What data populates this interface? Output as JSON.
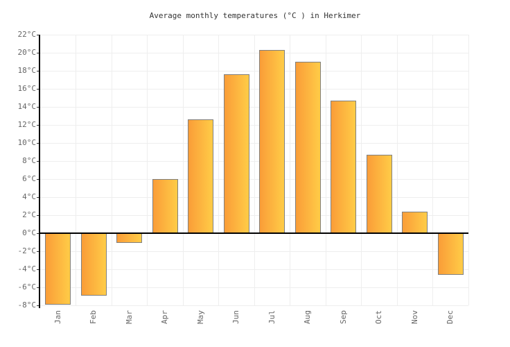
{
  "chart_data": {
    "type": "bar",
    "title": "Average monthly temperatures (°C ) in Herkimer",
    "categories": [
      "Jan",
      "Feb",
      "Mar",
      "Apr",
      "May",
      "Jun",
      "Jul",
      "Aug",
      "Sep",
      "Oct",
      "Nov",
      "Dec"
    ],
    "values": [
      -7.9,
      -6.9,
      -1.1,
      6,
      12.6,
      17.6,
      20.3,
      19,
      14.7,
      8.7,
      2.4,
      -4.6
    ],
    "xlabel": "",
    "ylabel": "",
    "ylim": [
      -8,
      22
    ],
    "ytick_step": 2,
    "ytick_labels": [
      "22°C",
      "20°C",
      "18°C",
      "16°C",
      "14°C",
      "12°C",
      "10°C",
      "8°C",
      "6°C",
      "4°C",
      "2°C",
      "0°C",
      "-2°C",
      "-4°C",
      "-6°C",
      "-8°C"
    ],
    "grid": "on",
    "legend": "none",
    "colors": {
      "bar_gradient_left": "#FA9D38",
      "bar_gradient_right": "#FFCC47",
      "bar_border": "#7F7F7F",
      "grid_line": "#EEEEEE",
      "zero_line": "#000000",
      "axis_line": "#000000",
      "tick_mark": "#333333",
      "title_text": "#333333",
      "tick_label_text": "#666666",
      "background": "#FFFFFF"
    }
  }
}
